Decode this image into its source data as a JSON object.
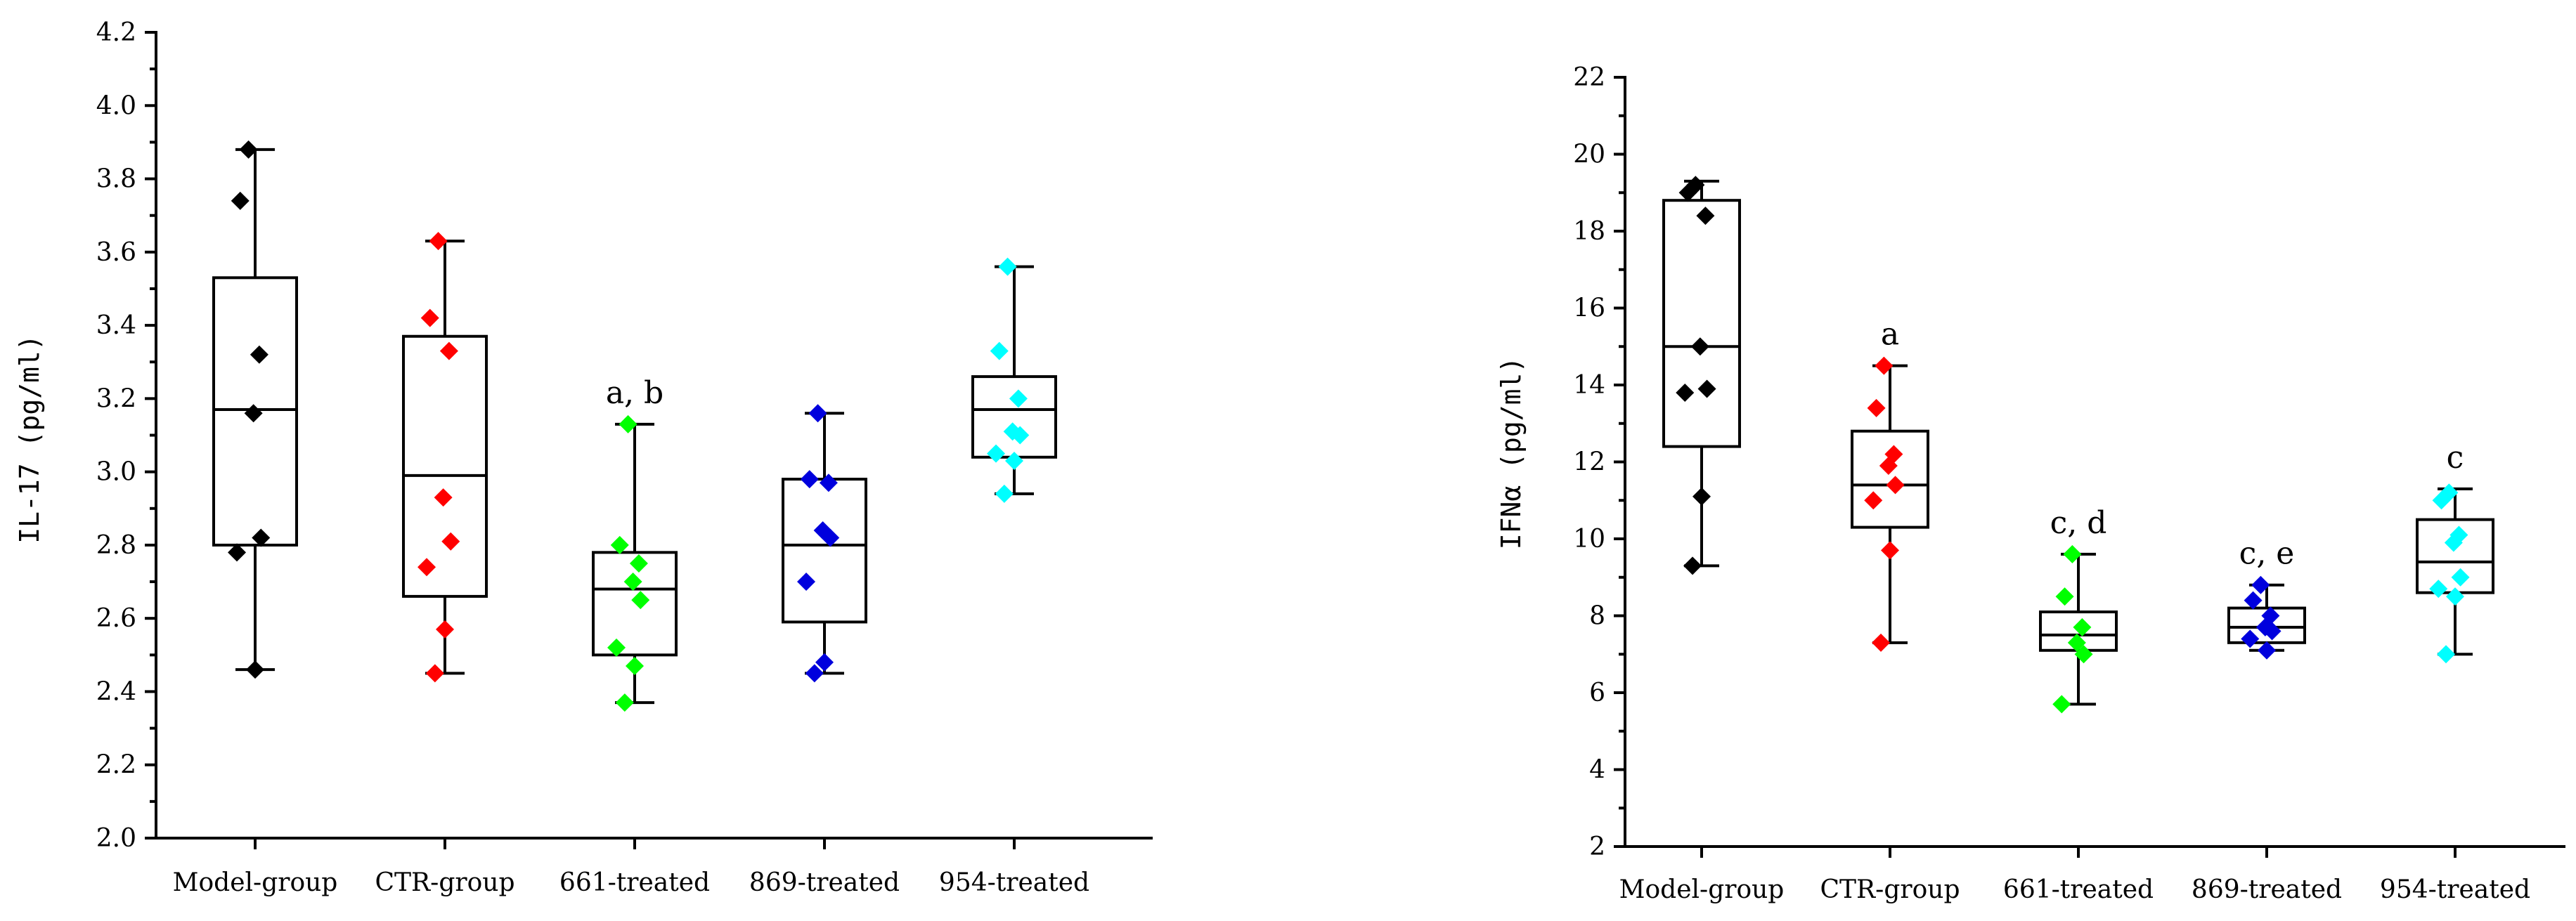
{
  "chart_data": [
    {
      "type": "box",
      "ylabel": "IL-17 (pg/ml)",
      "ylim": [
        2.0,
        4.2
      ],
      "yticks": [
        "2.0",
        "2.2",
        "2.4",
        "2.6",
        "2.8",
        "3.0",
        "3.2",
        "3.4",
        "3.6",
        "3.8",
        "4.0",
        "4.2"
      ],
      "ytick_values": [
        2.0,
        2.2,
        2.4,
        2.6,
        2.8,
        3.0,
        3.2,
        3.4,
        3.6,
        3.8,
        4.0,
        4.2
      ],
      "categories": [
        "Model-group",
        "CTR-group",
        "661-treated",
        "869-treated",
        "954-treated"
      ],
      "groups": [
        {
          "name": "Model-group",
          "color": "#000000",
          "whisker_low": 2.46,
          "q1": 2.8,
          "median": 3.17,
          "q3": 3.53,
          "whisker_high": 3.88,
          "points": [
            3.88,
            3.74,
            3.32,
            3.16,
            2.82,
            2.78,
            2.46
          ],
          "annotation": ""
        },
        {
          "name": "CTR-group",
          "color": "#ff0000",
          "whisker_low": 2.45,
          "q1": 2.66,
          "median": 2.99,
          "q3": 3.37,
          "whisker_high": 3.63,
          "points": [
            3.63,
            3.42,
            3.33,
            2.93,
            2.81,
            2.74,
            2.57,
            2.45
          ],
          "annotation": ""
        },
        {
          "name": "661-treated",
          "color": "#00ff00",
          "whisker_low": 2.37,
          "q1": 2.5,
          "median": 2.68,
          "q3": 2.78,
          "whisker_high": 3.13,
          "points": [
            3.13,
            2.8,
            2.75,
            2.7,
            2.65,
            2.52,
            2.47,
            2.37
          ],
          "annotation": "a, b"
        },
        {
          "name": "869-treated",
          "color": "#0000dd",
          "whisker_low": 2.45,
          "q1": 2.59,
          "median": 2.8,
          "q3": 2.98,
          "whisker_high": 3.16,
          "points": [
            3.16,
            2.98,
            2.97,
            2.84,
            2.82,
            2.7,
            2.48,
            2.45
          ],
          "annotation": ""
        },
        {
          "name": "954-treated",
          "color": "#00ffff",
          "whisker_low": 2.94,
          "q1": 3.04,
          "median": 3.17,
          "q3": 3.26,
          "whisker_high": 3.56,
          "points": [
            3.56,
            3.33,
            3.2,
            3.11,
            3.1,
            3.05,
            3.03,
            2.94
          ],
          "annotation": ""
        }
      ]
    },
    {
      "type": "box",
      "ylabel": "IFNα (pg/ml)",
      "ylim": [
        2,
        22
      ],
      "yticks": [
        "2",
        "4",
        "6",
        "8",
        "10",
        "12",
        "14",
        "16",
        "18",
        "20",
        "22"
      ],
      "ytick_values": [
        2,
        4,
        6,
        8,
        10,
        12,
        14,
        16,
        18,
        20,
        22
      ],
      "categories": [
        "Model-group",
        "CTR-group",
        "661-treated",
        "869-treated",
        "954-treated"
      ],
      "groups": [
        {
          "name": "Model-group",
          "color": "#000000",
          "whisker_low": 9.3,
          "q1": 12.4,
          "median": 15.0,
          "q3": 18.8,
          "whisker_high": 19.3,
          "points": [
            19.2,
            19.0,
            18.4,
            15.0,
            13.9,
            13.8,
            11.1,
            9.3
          ],
          "annotation": ""
        },
        {
          "name": "CTR-group",
          "color": "#ff0000",
          "whisker_low": 7.3,
          "q1": 10.3,
          "median": 11.4,
          "q3": 12.8,
          "whisker_high": 14.5,
          "points": [
            14.5,
            13.4,
            12.2,
            11.9,
            11.4,
            11.0,
            9.7,
            7.3
          ],
          "annotation": "a"
        },
        {
          "name": "661-treated",
          "color": "#00ff00",
          "whisker_low": 5.7,
          "q1": 7.1,
          "median": 7.5,
          "q3": 8.1,
          "whisker_high": 9.6,
          "points": [
            9.6,
            8.5,
            7.7,
            7.3,
            7.0,
            5.7
          ],
          "annotation": "c, d"
        },
        {
          "name": "869-treated",
          "color": "#0000dd",
          "whisker_low": 7.1,
          "q1": 7.3,
          "median": 7.7,
          "q3": 8.2,
          "whisker_high": 8.8,
          "points": [
            8.8,
            8.4,
            8.0,
            7.7,
            7.6,
            7.4,
            7.1
          ],
          "annotation": "c, e"
        },
        {
          "name": "954-treated",
          "color": "#00ffff",
          "whisker_low": 7.0,
          "q1": 8.6,
          "median": 9.4,
          "q3": 10.5,
          "whisker_high": 11.3,
          "points": [
            11.2,
            11.0,
            10.1,
            9.9,
            9.0,
            8.7,
            8.5,
            7.0
          ],
          "annotation": "c"
        }
      ]
    }
  ]
}
